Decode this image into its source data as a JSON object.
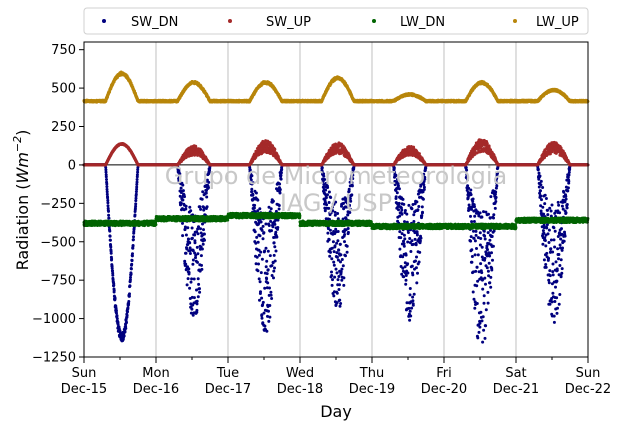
{
  "chart_data": {
    "type": "scatter",
    "title": "",
    "xlabel": "Day",
    "ylabel_main": "Radiation (",
    "ylabel_unit": "Wm",
    "ylabel_exp": "−2",
    "ylabel_close": ")",
    "ylim": [
      -1250,
      800
    ],
    "xlim": [
      0,
      7
    ],
    "yticks": [
      -1250,
      -1000,
      -750,
      -500,
      -250,
      0,
      250,
      500,
      750
    ],
    "ytick_labels": [
      "−1250",
      "−1000",
      "−750",
      "−500",
      "−250",
      "0",
      "250",
      "500",
      "750"
    ],
    "xticks": [
      {
        "x": 0,
        "day": "Sun",
        "date": "Dec-15"
      },
      {
        "x": 1,
        "day": "Mon",
        "date": "Dec-16"
      },
      {
        "x": 2,
        "day": "Tue",
        "date": "Dec-17"
      },
      {
        "x": 3,
        "day": "Wed",
        "date": "Dec-18"
      },
      {
        "x": 4,
        "day": "Thu",
        "date": "Dec-19"
      },
      {
        "x": 5,
        "day": "Fri",
        "date": "Dec-20"
      },
      {
        "x": 6,
        "day": "Sat",
        "date": "Dec-21"
      },
      {
        "x": 7,
        "day": "Sun",
        "date": "Dec-22"
      }
    ],
    "grid_x": true,
    "grid_y": false,
    "legend_position": "top",
    "watermark_line1": "Grupo de Micrometeorologia",
    "watermark_line2": "IAG / USP",
    "series": [
      {
        "name": "SW_DN",
        "color": "#00007f",
        "daily_peaks": [
          -1150,
          -1000,
          -1100,
          -950,
          -1020,
          -1230,
          -1050
        ],
        "baseline": 0
      },
      {
        "name": "SW_UP",
        "color": "#a52a2a",
        "daily_peaks": [
          140,
          125,
          160,
          145,
          125,
          170,
          150
        ],
        "baseline": 0
      },
      {
        "name": "LW_DN",
        "color": "#006400",
        "daily_levels": [
          -380,
          -350,
          -330,
          -380,
          -400,
          -400,
          -360
        ],
        "baseline": -385
      },
      {
        "name": "LW_UP",
        "color": "#b8860b",
        "daily_peaks": [
          600,
          540,
          540,
          570,
          460,
          540,
          490
        ],
        "baseline": 415
      }
    ]
  }
}
